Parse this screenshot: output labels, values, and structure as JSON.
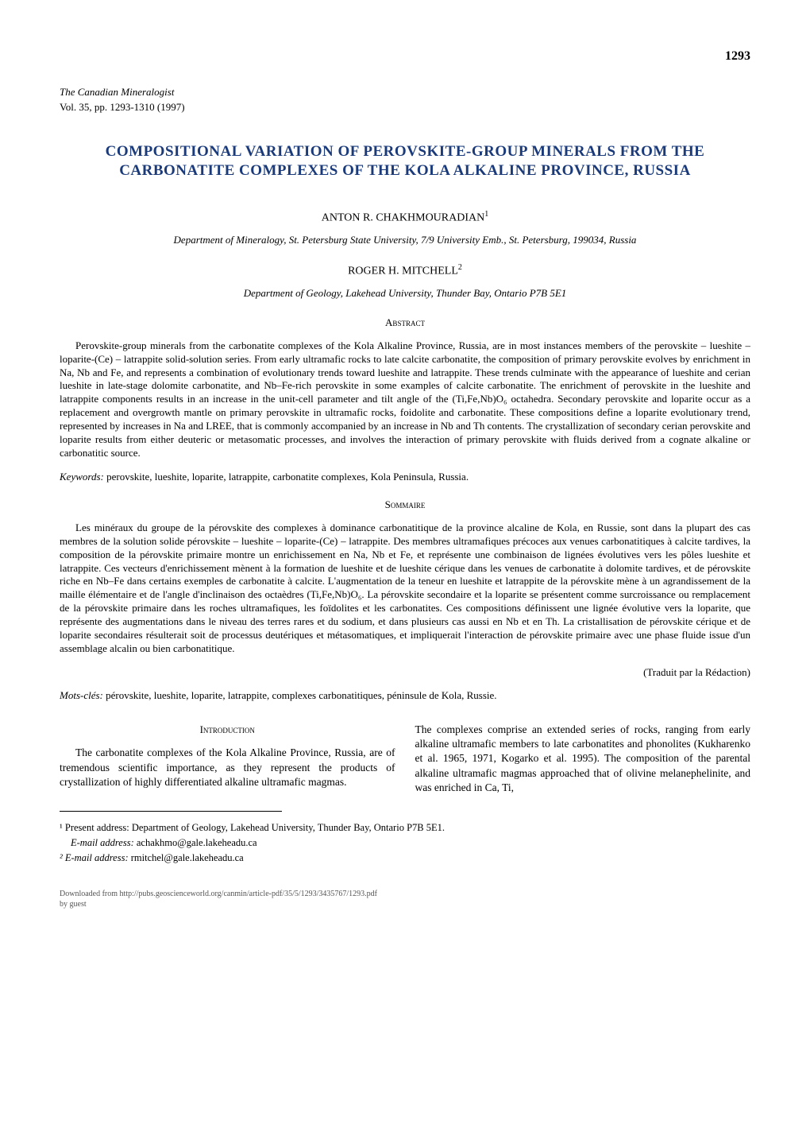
{
  "page": {
    "number": "1293"
  },
  "journal": {
    "name": "The Canadian Mineralogist",
    "volume": "Vol. 35, pp. 1293-1310 (1997)"
  },
  "title": "COMPOSITIONAL VARIATION OF PEROVSKITE-GROUP MINERALS FROM THE CARBONATITE COMPLEXES OF THE KOLA ALKALINE PROVINCE, RUSSIA",
  "authors": [
    {
      "name": "ANTON R. CHAKHMOURADIAN",
      "sup": "1",
      "affiliation": "Department of Mineralogy, St. Petersburg State University, 7/9 University Emb., St. Petersburg, 199034, Russia"
    },
    {
      "name": "ROGER H. MITCHELL",
      "sup": "2",
      "affiliation": "Department of Geology, Lakehead University, Thunder Bay, Ontario P7B 5E1"
    }
  ],
  "abstract": {
    "heading": "Abstract",
    "text": "Perovskite-group minerals from the carbonatite complexes of the Kola Alkaline Province, Russia, are in most instances members of the perovskite – lueshite – loparite-(Ce) – latrappite solid-solution series. From early ultramafic rocks to late calcite carbonatite, the composition of primary perovskite evolves by enrichment in Na, Nb and Fe, and represents a combination of evolutionary trends toward lueshite and latrappite. These trends culminate with the appearance of lueshite and cerian lueshite in late-stage dolomite carbonatite, and Nb–Fe-rich perovskite in some examples of calcite carbonatite. The enrichment of perovskite in the lueshite and latrappite components results in an increase in the unit-cell parameter and tilt angle of the (Ti,Fe,Nb)O₆ octahedra. Secondary perovskite and loparite occur as a replacement and overgrowth mantle on primary perovskite in ultramafic rocks, foidolite and carbonatite. These compositions define a loparite evolutionary trend, represented by increases in Na and LREE, that is commonly accompanied by an increase in Nb and Th contents. The crystallization of secondary cerian perovskite and loparite results from either deuteric or metasomatic processes, and involves the interaction of primary perovskite with fluids derived from a cognate alkaline or carbonatitic source."
  },
  "keywords": {
    "label": "Keywords:",
    "text": " perovskite, lueshite, loparite, latrappite, carbonatite complexes, Kola Peninsula, Russia."
  },
  "sommaire": {
    "heading": "Sommaire",
    "text": "Les minéraux du groupe de la pérovskite des complexes à dominance carbonatitique de la province alcaline de Kola, en Russie, sont dans la plupart des cas membres de la solution solide pérovskite – lueshite – loparite-(Ce) – latrappite. Des membres ultramafiques précoces aux venues carbonatitiques à calcite tardives, la composition de la pérovskite primaire montre un enrichissement en Na, Nb et Fe, et représente une combinaison de lignées évolutives vers les pôles lueshite et latrappite. Ces vecteurs d'enrichissement mènent à la formation de lueshite et de lueshite cérique dans les venues de carbonatite à dolomite tardives, et de pérovskite riche en Nb–Fe dans certains exemples de carbonatite à calcite. L'augmentation de la teneur en lueshite et latrappite de la pérovskite mène à un agrandissement de la maille élémentaire et de l'angle d'inclinaison des octaèdres (Ti,Fe,Nb)O₆. La pérovskite secondaire et la loparite se présentent comme surcroissance ou remplacement de la pérovskite primaire dans les roches ultramafiques, les foïdolites et les carbonatites. Ces compositions définissent une lignée évolutive vers la loparite, que représente des augmentations dans le niveau des terres rares et du sodium, et dans plusieurs cas aussi en Nb et en Th. La cristallisation de pérovskite cérique et de loparite secondaires résulterait soit de processus deutériques et métasomatiques, et impliquerait l'interaction de pérovskite primaire avec une phase fluide issue d'un assemblage alcalin ou bien carbonatitique.",
    "traduit": "(Traduit par la Rédaction)"
  },
  "motsCles": {
    "label": "Mots-clés:",
    "text": " pérovskite, lueshite, loparite, latrappite, complexes carbonatitiques, péninsule de Kola, Russie."
  },
  "introduction": {
    "heading": "Introduction",
    "columnLeft": "The carbonatite complexes of the Kola Alkaline Province, Russia, are of tremendous scientific importance, as they represent the products of crystallization of highly differentiated alkaline ultramafic magmas.",
    "columnRight": "The complexes comprise an extended series of rocks, ranging from early alkaline ultramafic members to late carbonatites and phonolites (Kukharenko et al. 1965, 1971, Kogarko et al. 1995). The composition of the parental alkaline ultramafic magmas approached that of olivine melanephelinite, and was enriched in Ca, Ti,"
  },
  "footnotes": {
    "note1": "¹ Present address: Department of Geology, Lakehead University, Thunder Bay, Ontario P7B 5E1.",
    "email1Label": "E-mail address:",
    "email1": " achakhmo@gale.lakeheadu.ca",
    "note2Label": "² E-mail address:",
    "email2": " rmitchel@gale.lakeheadu.ca"
  },
  "download": {
    "line1": "Downloaded from http://pubs.geoscienceworld.org/canmin/article-pdf/35/5/1293/3435767/1293.pdf",
    "line2": "by guest"
  }
}
